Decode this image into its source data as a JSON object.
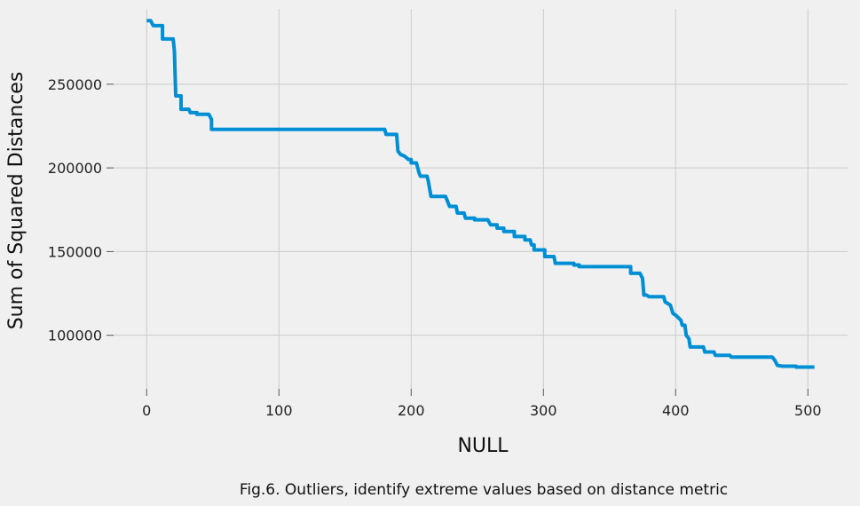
{
  "chart_data": {
    "type": "line",
    "xlabel": "NULL",
    "ylabel": "Sum of Squared Distances",
    "xlim": [
      -25,
      530
    ],
    "ylim": [
      68000,
      295000
    ],
    "xticks": [
      0,
      100,
      200,
      300,
      400,
      500
    ],
    "yticks": [
      100000,
      150000,
      200000,
      250000
    ],
    "grid": true,
    "line_color": "#008fd5",
    "series": [
      {
        "points": [
          [
            0,
            288000
          ],
          [
            3,
            288000
          ],
          [
            5,
            285000
          ],
          [
            12,
            285000
          ],
          [
            12,
            277000
          ],
          [
            20,
            277000
          ],
          [
            21,
            270000
          ],
          [
            22,
            243000
          ],
          [
            26,
            243000
          ],
          [
            26,
            235000
          ],
          [
            32,
            235000
          ],
          [
            33,
            233000
          ],
          [
            38,
            233000
          ],
          [
            38,
            232000
          ],
          [
            47,
            232000
          ],
          [
            49,
            229000
          ],
          [
            49,
            223000
          ],
          [
            180,
            223000
          ],
          [
            181,
            220000
          ],
          [
            189,
            220000
          ],
          [
            190,
            210000
          ],
          [
            192,
            208000
          ],
          [
            195,
            207000
          ],
          [
            198,
            205000
          ],
          [
            200,
            205000
          ],
          [
            200,
            203000
          ],
          [
            204,
            203000
          ],
          [
            206,
            197000
          ],
          [
            207,
            195000
          ],
          [
            212,
            195000
          ],
          [
            213,
            192000
          ],
          [
            215,
            183000
          ],
          [
            226,
            183000
          ],
          [
            227,
            181000
          ],
          [
            229,
            177000
          ],
          [
            234,
            177000
          ],
          [
            235,
            173000
          ],
          [
            240,
            173000
          ],
          [
            241,
            170000
          ],
          [
            248,
            170000
          ],
          [
            248,
            169000
          ],
          [
            258,
            169000
          ],
          [
            260,
            166000
          ],
          [
            265,
            166000
          ],
          [
            265,
            164000
          ],
          [
            270,
            164000
          ],
          [
            270,
            162000
          ],
          [
            278,
            162000
          ],
          [
            278,
            159000
          ],
          [
            286,
            159000
          ],
          [
            286,
            157000
          ],
          [
            290,
            157000
          ],
          [
            291,
            154000
          ],
          [
            293,
            154000
          ],
          [
            293,
            151000
          ],
          [
            301,
            151000
          ],
          [
            301,
            147000
          ],
          [
            308,
            147000
          ],
          [
            309,
            143000
          ],
          [
            323,
            143000
          ],
          [
            323,
            142000
          ],
          [
            327,
            142000
          ],
          [
            327,
            141000
          ],
          [
            366,
            141000
          ],
          [
            366,
            137000
          ],
          [
            373,
            137000
          ],
          [
            375,
            134000
          ],
          [
            376,
            124000
          ],
          [
            378,
            124000
          ],
          [
            380,
            123000
          ],
          [
            391,
            123000
          ],
          [
            392,
            120000
          ],
          [
            396,
            118000
          ],
          [
            398,
            113000
          ],
          [
            400,
            112000
          ],
          [
            404,
            109000
          ],
          [
            405,
            106000
          ],
          [
            407,
            106000
          ],
          [
            408,
            100000
          ],
          [
            410,
            98000
          ],
          [
            411,
            93000
          ],
          [
            421,
            93000
          ],
          [
            422,
            90000
          ],
          [
            429,
            90000
          ],
          [
            430,
            88000
          ],
          [
            441,
            88000
          ],
          [
            442,
            87000
          ],
          [
            473,
            87000
          ],
          [
            475,
            85000
          ],
          [
            477,
            82000
          ],
          [
            481,
            81500
          ],
          [
            491,
            81500
          ],
          [
            491,
            81000
          ],
          [
            505,
            81000
          ]
        ]
      }
    ]
  },
  "caption": "Fig.6. Outliers, identify extreme values based on distance metric"
}
